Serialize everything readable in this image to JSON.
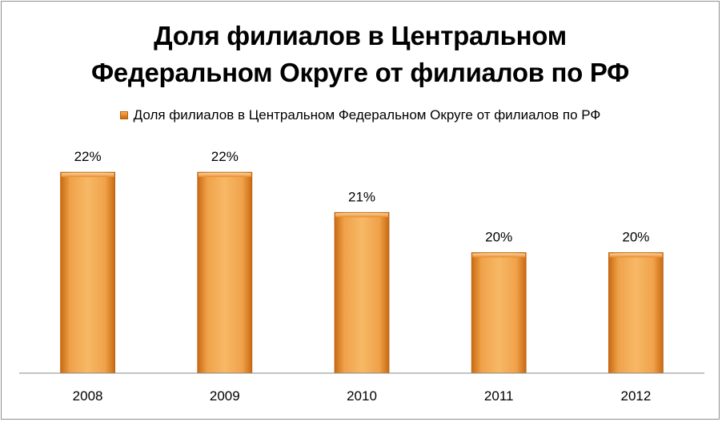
{
  "chart_data": {
    "type": "bar",
    "title": [
      "Доля филиалов в Центральном",
      "Федеральном Округе от филиалов по РФ"
    ],
    "legend_position": "top",
    "grid": false,
    "categories": [
      "2008",
      "2009",
      "2010",
      "2011",
      "2012"
    ],
    "series": [
      {
        "name": "Доля филиалов в Центральном Федеральном Округе от филиалов по РФ",
        "values": [
          22,
          22,
          21,
          20,
          20
        ],
        "data_labels": [
          "22%",
          "22%",
          "21%",
          "20%",
          "20%"
        ],
        "color": "#e88a2a"
      }
    ],
    "ylim": [
      17,
      22.6
    ],
    "xlabel": "",
    "ylabel": ""
  }
}
